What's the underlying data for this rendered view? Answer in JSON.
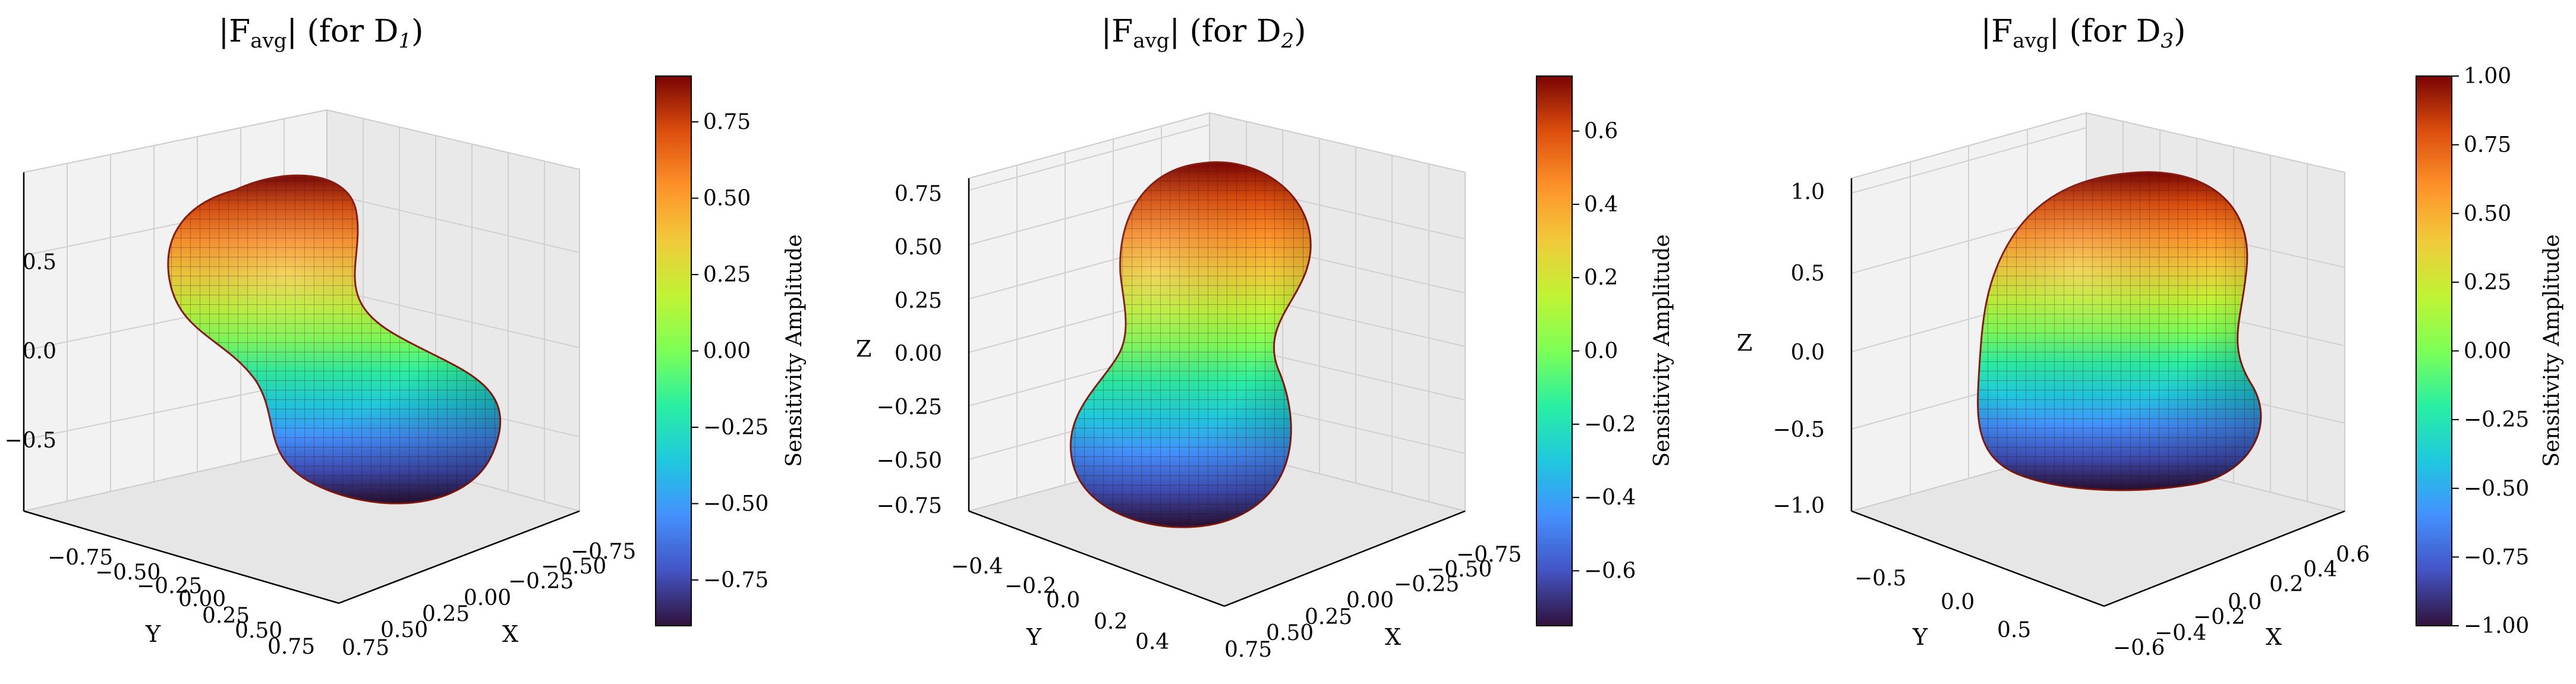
{
  "chart_data": [
    {
      "type": "surface3d",
      "title": "|F_avg| (for D1)",
      "title_parts": {
        "pre": "|F",
        "sub": "avg",
        "mid": "| (for D",
        "idx": "1",
        "post": ")"
      },
      "xlabel": "X",
      "ylabel": "Y",
      "zlabel": "",
      "x_ticks": [
        "−0.75",
        "−0.50",
        "−0.25",
        "0.00",
        "0.25",
        "0.50",
        "0.75"
      ],
      "y_ticks": [
        "−0.75",
        "−0.50",
        "−0.25",
        "0.00",
        "0.25",
        "0.50",
        "0.75"
      ],
      "z_ticks": [
        "0.5",
        "0.0",
        "−0.5"
      ],
      "colorbar_label": "Sensitivity Amplitude",
      "colorbar_ticks": [
        "0.75",
        "0.50",
        "0.25",
        "0.00",
        "−0.25",
        "−0.50",
        "−0.75"
      ],
      "colorbar_range": [
        -0.9,
        0.9
      ],
      "colormap": "turbo",
      "shape": "dumbbell tilted"
    },
    {
      "type": "surface3d",
      "title": "|F_avg| (for D2)",
      "title_parts": {
        "pre": "|F",
        "sub": "avg",
        "mid": "| (for D",
        "idx": "2",
        "post": ")"
      },
      "xlabel": "X",
      "ylabel": "Y",
      "zlabel": "Z",
      "x_ticks": [
        "−0.75",
        "−0.50",
        "−0.25",
        "0.00",
        "0.25",
        "0.50",
        "0.75"
      ],
      "y_ticks": [
        "−0.4",
        "−0.2",
        "0.0",
        "0.2",
        "0.4"
      ],
      "z_ticks": [
        "0.75",
        "0.50",
        "0.25",
        "0.00",
        "−0.25",
        "−0.50",
        "−0.75"
      ],
      "colorbar_label": "Sensitivity Amplitude",
      "colorbar_ticks": [
        "0.6",
        "0.4",
        "0.2",
        "0.0",
        "−0.2",
        "−0.4",
        "−0.6"
      ],
      "colorbar_range": [
        -0.75,
        0.75
      ],
      "colormap": "turbo",
      "shape": "dumbbell vertical"
    },
    {
      "type": "surface3d",
      "title": "|F_avg| (for D3)",
      "title_parts": {
        "pre": "|F",
        "sub": "avg",
        "mid": "| (for D",
        "idx": "3",
        "post": ")"
      },
      "xlabel": "X",
      "ylabel": "Y",
      "zlabel": "Z",
      "x_ticks": [
        "0.6",
        "0.4",
        "0.2",
        "0.0",
        "−0.2",
        "−0.4",
        "−0.6"
      ],
      "y_ticks": [
        "−0.5",
        "0.0",
        "0.5"
      ],
      "z_ticks": [
        "1.0",
        "0.5",
        "0.0",
        "−0.5",
        "−1.0"
      ],
      "colorbar_label": "Sensitivity Amplitude",
      "colorbar_ticks": [
        "1.00",
        "0.75",
        "0.50",
        "0.25",
        "0.00",
        "−0.25",
        "−0.50",
        "−0.75",
        "−1.00"
      ],
      "colorbar_range": [
        -1.0,
        1.0
      ],
      "colormap": "turbo",
      "shape": "saddle lobe"
    }
  ]
}
